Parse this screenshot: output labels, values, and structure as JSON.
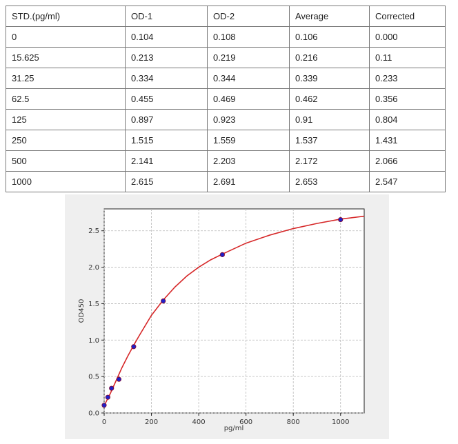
{
  "table": {
    "headers": [
      "STD.(pg/ml)",
      "OD-1",
      "OD-2",
      "Average",
      "Corrected"
    ],
    "rows": [
      [
        "0",
        "0.104",
        "0.108",
        "0.106",
        "0.000"
      ],
      [
        "15.625",
        "0.213",
        "0.219",
        "0.216",
        "0.11"
      ],
      [
        "31.25",
        "0.334",
        "0.344",
        "0.339",
        "0.233"
      ],
      [
        "62.5",
        "0.455",
        "0.469",
        "0.462",
        "0.356"
      ],
      [
        "125",
        "0.897",
        "0.923",
        "0.91",
        "0.804"
      ],
      [
        "250",
        "1.515",
        "1.559",
        "1.537",
        "1.431"
      ],
      [
        "500",
        "2.141",
        "2.203",
        "2.172",
        "2.066"
      ],
      [
        "1000",
        "2.615",
        "2.691",
        "2.653",
        "2.547"
      ]
    ]
  },
  "chart_data": {
    "type": "scatter",
    "title": "",
    "xlabel": "pg/ml",
    "ylabel": "OD450",
    "xlim": [
      0,
      1100
    ],
    "ylim": [
      0,
      2.8
    ],
    "xticks": [
      0,
      200,
      400,
      600,
      800,
      1000
    ],
    "yticks": [
      0.0,
      0.5,
      1.0,
      1.5,
      2.0,
      2.5
    ],
    "xtick_labels": [
      "0",
      "200",
      "400",
      "600",
      "800",
      "1000"
    ],
    "ytick_labels": [
      "0.0",
      "0.5",
      "1.0",
      "1.5",
      "2.0",
      "2.5"
    ],
    "grid": true,
    "points": {
      "x": [
        0,
        15.625,
        31.25,
        62.5,
        125,
        250,
        500,
        1000
      ],
      "y": [
        0.106,
        0.216,
        0.339,
        0.462,
        0.91,
        1.537,
        2.172,
        2.653
      ]
    },
    "fit_curve": {
      "x": [
        0,
        25,
        50,
        75,
        100,
        125,
        150,
        200,
        250,
        300,
        350,
        400,
        450,
        500,
        600,
        700,
        800,
        900,
        1000,
        1100
      ],
      "y": [
        0.1,
        0.26,
        0.44,
        0.62,
        0.78,
        0.93,
        1.07,
        1.34,
        1.55,
        1.73,
        1.88,
        2.0,
        2.1,
        2.18,
        2.33,
        2.44,
        2.53,
        2.6,
        2.66,
        2.7
      ]
    },
    "colors": {
      "marker_fill": "#2020c8",
      "marker_edge": "#8a0a2a",
      "curve": "#d62728",
      "grid": "#b8b8b8"
    }
  }
}
